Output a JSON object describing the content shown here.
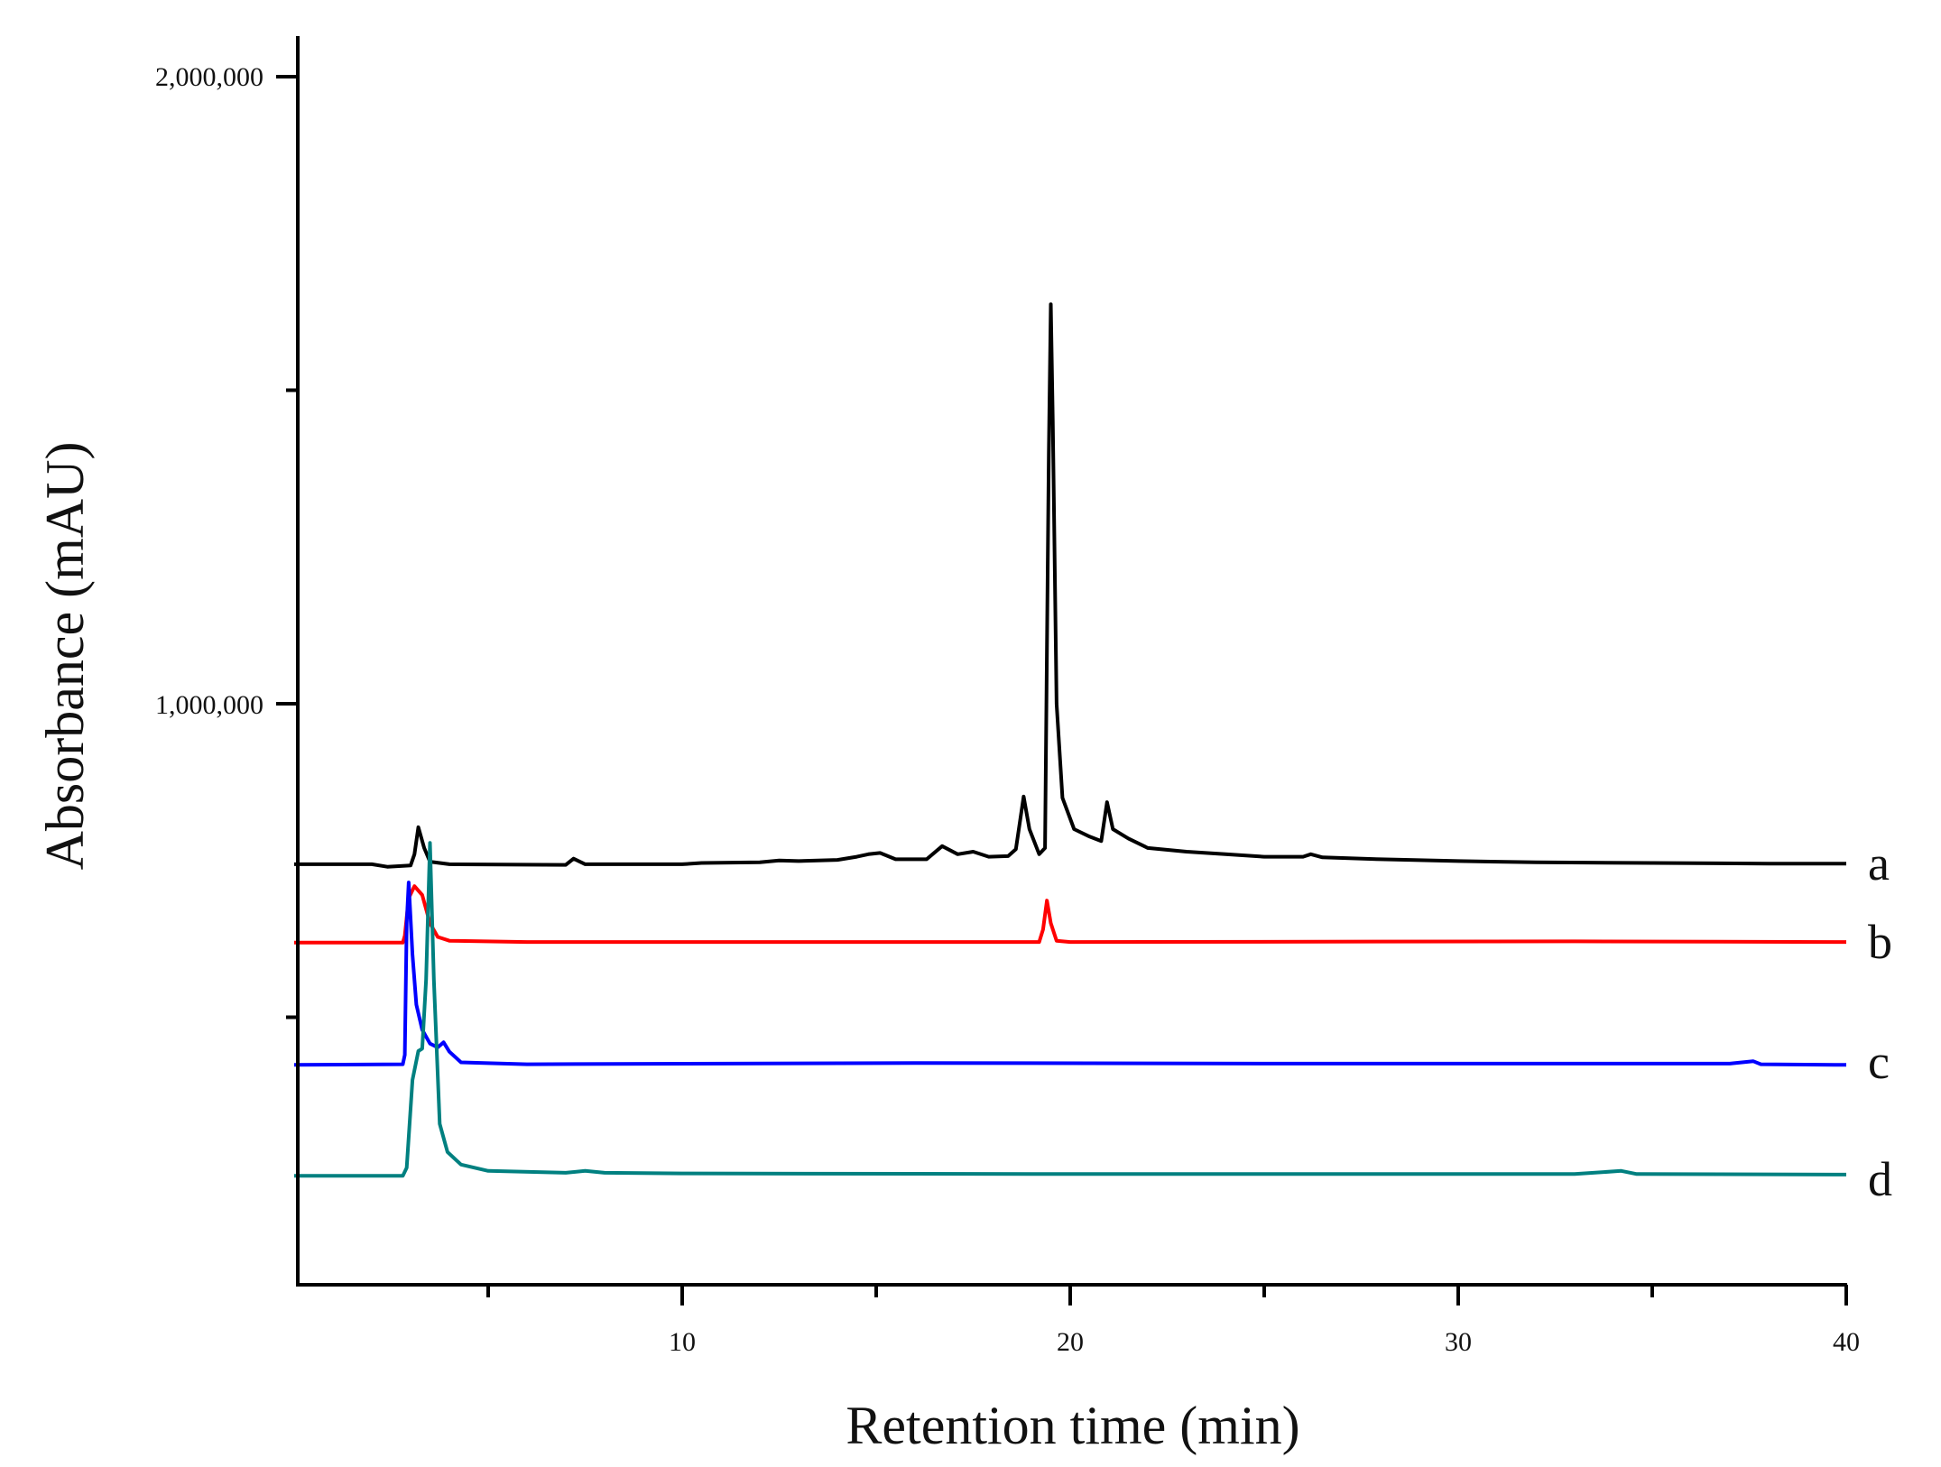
{
  "chart_data": {
    "type": "line",
    "title": "",
    "xlabel": "Retention time (min)",
    "ylabel": "Absorbance (mAU)",
    "xlim": [
      0,
      40
    ],
    "ylim": [
      -100000,
      2060000
    ],
    "grid": false,
    "legend_position": "inline-right",
    "x_ticks": {
      "major": [
        10,
        20,
        30,
        40
      ],
      "major_labels": [
        "10",
        "20",
        "30",
        "40"
      ],
      "minor": [
        5,
        15,
        25,
        35
      ]
    },
    "y_ticks": {
      "major": [
        1000000,
        2000000
      ],
      "major_labels": [
        "1,000,000",
        "2,000,000"
      ],
      "minor": [
        500000,
        1500000
      ]
    },
    "series": [
      {
        "name": "a",
        "color": "#000000",
        "points": [
          [
            0,
            744000
          ],
          [
            2,
            744000
          ],
          [
            2.4,
            740000
          ],
          [
            3.0,
            742000
          ],
          [
            3.1,
            760000
          ],
          [
            3.2,
            803000
          ],
          [
            3.35,
            770000
          ],
          [
            3.5,
            748000
          ],
          [
            4,
            744000
          ],
          [
            7.0,
            743000
          ],
          [
            7.2,
            753000
          ],
          [
            7.5,
            744000
          ],
          [
            10,
            744000
          ],
          [
            10.5,
            746000
          ],
          [
            12,
            747000
          ],
          [
            12.5,
            750000
          ],
          [
            13,
            749000
          ],
          [
            14,
            751000
          ],
          [
            14.5,
            756000
          ],
          [
            14.8,
            760000
          ],
          [
            15.1,
            762000
          ],
          [
            15.5,
            752000
          ],
          [
            16.3,
            752000
          ],
          [
            16.7,
            773000
          ],
          [
            17.1,
            760000
          ],
          [
            17.5,
            764000
          ],
          [
            17.9,
            756000
          ],
          [
            18.4,
            757000
          ],
          [
            18.6,
            768000
          ],
          [
            18.8,
            852000
          ],
          [
            18.95,
            800000
          ],
          [
            19.2,
            760000
          ],
          [
            19.35,
            770000
          ],
          [
            19.45,
            1400000
          ],
          [
            19.5,
            1637000
          ],
          [
            19.55,
            1450000
          ],
          [
            19.65,
            1000000
          ],
          [
            19.8,
            850000
          ],
          [
            20.1,
            800000
          ],
          [
            20.5,
            788000
          ],
          [
            20.8,
            781000
          ],
          [
            20.95,
            843000
          ],
          [
            21.1,
            800000
          ],
          [
            21.5,
            785000
          ],
          [
            22,
            770000
          ],
          [
            23,
            764000
          ],
          [
            24,
            760000
          ],
          [
            25,
            756000
          ],
          [
            26,
            756000
          ],
          [
            26.2,
            760000
          ],
          [
            26.5,
            755000
          ],
          [
            28,
            752000
          ],
          [
            30,
            749000
          ],
          [
            32,
            747000
          ],
          [
            35,
            746000
          ],
          [
            38,
            745000
          ],
          [
            40,
            745000
          ]
        ]
      },
      {
        "name": "b",
        "color": "#ff0000",
        "points": [
          [
            0,
            619000
          ],
          [
            2.8,
            619000
          ],
          [
            2.85,
            630000
          ],
          [
            2.95,
            690000
          ],
          [
            3.1,
            709000
          ],
          [
            3.3,
            695000
          ],
          [
            3.5,
            650000
          ],
          [
            3.7,
            628000
          ],
          [
            4.0,
            622000
          ],
          [
            6,
            620000
          ],
          [
            12,
            620000
          ],
          [
            19.2,
            620000
          ],
          [
            19.3,
            640000
          ],
          [
            19.4,
            686000
          ],
          [
            19.5,
            650000
          ],
          [
            19.65,
            622000
          ],
          [
            20,
            620000
          ],
          [
            33,
            621000
          ],
          [
            40,
            620000
          ]
        ]
      },
      {
        "name": "c",
        "color": "#0000ff",
        "points": [
          [
            0,
            424000
          ],
          [
            2.8,
            425000
          ],
          [
            2.85,
            440000
          ],
          [
            2.9,
            650000
          ],
          [
            2.95,
            715000
          ],
          [
            3.05,
            600000
          ],
          [
            3.15,
            520000
          ],
          [
            3.3,
            480000
          ],
          [
            3.5,
            458000
          ],
          [
            3.7,
            452000
          ],
          [
            3.85,
            460000
          ],
          [
            4.0,
            445000
          ],
          [
            4.3,
            428000
          ],
          [
            6,
            425000
          ],
          [
            16,
            427000
          ],
          [
            25,
            426000
          ],
          [
            37,
            426000
          ],
          [
            37.6,
            430000
          ],
          [
            37.8,
            425000
          ],
          [
            40,
            424000
          ]
        ]
      },
      {
        "name": "d",
        "color": "#008080",
        "points": [
          [
            0,
            247000
          ],
          [
            2.8,
            247000
          ],
          [
            2.9,
            260000
          ],
          [
            3.05,
            400000
          ],
          [
            3.2,
            446000
          ],
          [
            3.3,
            450000
          ],
          [
            3.4,
            560000
          ],
          [
            3.5,
            778000
          ],
          [
            3.6,
            560000
          ],
          [
            3.75,
            330000
          ],
          [
            3.95,
            285000
          ],
          [
            4.3,
            265000
          ],
          [
            5,
            255000
          ],
          [
            7.0,
            252000
          ],
          [
            7.5,
            255000
          ],
          [
            8,
            252000
          ],
          [
            10,
            251000
          ],
          [
            20,
            250000
          ],
          [
            33,
            250000
          ],
          [
            34.2,
            255000
          ],
          [
            34.6,
            250000
          ],
          [
            40,
            249000
          ]
        ]
      }
    ]
  },
  "axes": {
    "x_title": "Retention time (min)",
    "y_title": "Absorbance (mAU)"
  },
  "labels": {
    "a": "a",
    "b": "b",
    "c": "c",
    "d": "d"
  }
}
